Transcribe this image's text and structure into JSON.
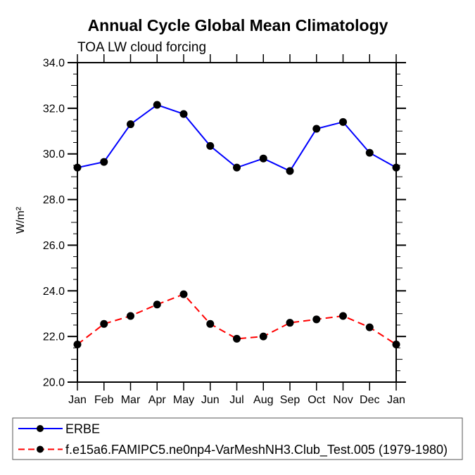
{
  "title": "Annual Cycle Global Mean Climatology",
  "subtitle": "TOA LW cloud forcing",
  "colors": {
    "axis": "#000000",
    "background": "#ffffff",
    "legend_border": "#555555",
    "erbe_line": "#0000ff",
    "model_line": "#ff0000",
    "marker": "#000000"
  },
  "chart_data": {
    "type": "line",
    "title": "Annual Cycle Global Mean Climatology",
    "subtitle": "TOA LW cloud forcing",
    "xlabel": "",
    "ylabel": "W/m²",
    "ylim": [
      20.0,
      34.0
    ],
    "y_major_step": 2.0,
    "y_minor_step": 0.5,
    "y_tick_labels": [
      "20.0",
      "22.0",
      "24.0",
      "26.0",
      "28.0",
      "30.0",
      "32.0",
      "34.0"
    ],
    "categories": [
      "Jan",
      "Feb",
      "Mar",
      "Apr",
      "May",
      "Jun",
      "Jul",
      "Aug",
      "Sep",
      "Oct",
      "Nov",
      "Dec",
      "Jan"
    ],
    "grid": false,
    "legend_position": "bottom-left",
    "series": [
      {
        "name": "ERBE",
        "color": "#0000ff",
        "line_style": "solid",
        "marker": "filled-circle",
        "marker_color": "#000000",
        "values": [
          29.4,
          29.65,
          31.3,
          32.15,
          31.75,
          30.35,
          29.4,
          29.8,
          29.25,
          31.1,
          31.4,
          30.05,
          29.4
        ]
      },
      {
        "name": "f.e15a6.FAMIPC5.ne0np4-VarMeshNH3.Club_Test.005 (1979-1980)",
        "color": "#ff0000",
        "line_style": "dashed",
        "marker": "filled-circle",
        "marker_color": "#000000",
        "values": [
          21.65,
          22.55,
          22.9,
          23.4,
          23.85,
          22.55,
          21.9,
          22.0,
          22.6,
          22.75,
          22.9,
          22.4,
          21.65
        ]
      }
    ]
  }
}
